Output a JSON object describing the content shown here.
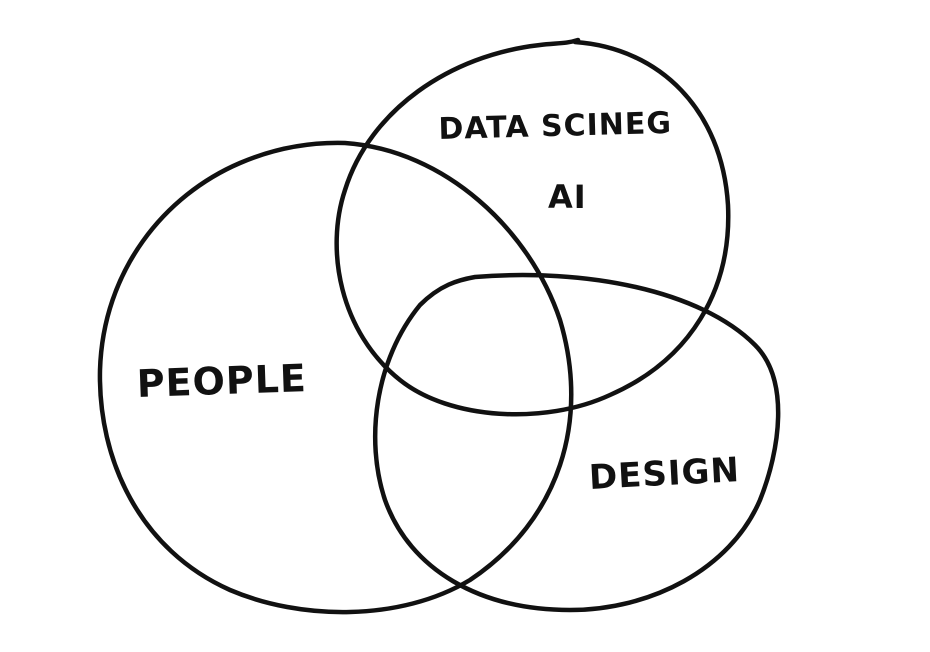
{
  "diagram": {
    "type": "venn",
    "stroke_color": "#111111",
    "background_color": "#ffffff",
    "sets": [
      {
        "id": "data-science-ai",
        "label_line1": "DATA SCINEG",
        "label_line2": "AI"
      },
      {
        "id": "people",
        "label": "PEOPLE"
      },
      {
        "id": "design",
        "label": "DESIGN"
      }
    ]
  }
}
